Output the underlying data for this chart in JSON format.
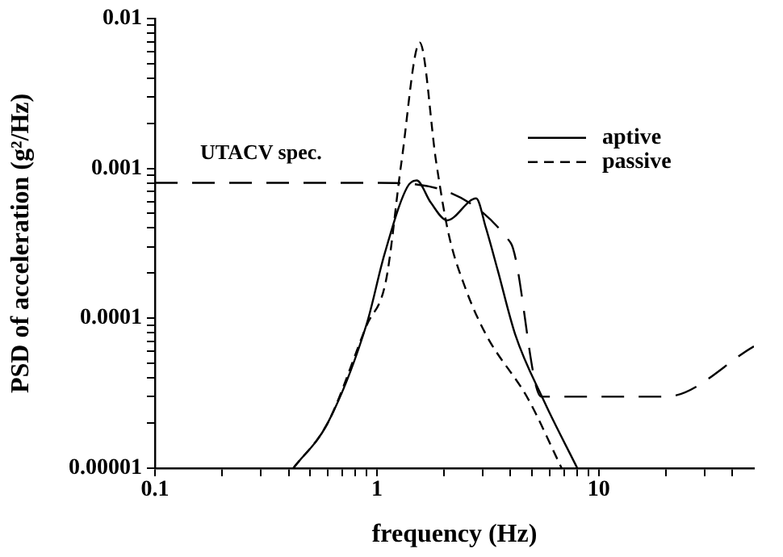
{
  "chart_data": {
    "type": "line",
    "xlabel": "frequency (Hz)",
    "ylabel": "PSD of acceleration (g²/Hz)",
    "log": "xy",
    "grid": false,
    "legend": "top right",
    "marker": "none",
    "xlim": [
      0.1,
      50
    ],
    "ylim": [
      1e-05,
      0.01
    ],
    "xticks": [
      0.1,
      {
        "value": 0.2,
        "label": null
      },
      {
        "value": 0.3,
        "label": null
      },
      {
        "value": 0.4,
        "label": null
      },
      {
        "value": 0.5,
        "label": null
      },
      {
        "value": 0.6,
        "label": null
      },
      {
        "value": 0.7,
        "label": null
      },
      {
        "value": 0.8,
        "label": null
      },
      {
        "value": 0.9,
        "label": null
      },
      1,
      {
        "value": 2,
        "label": null
      },
      {
        "value": 3,
        "label": null
      },
      {
        "value": 4,
        "label": null
      },
      {
        "value": 5,
        "label": null
      },
      {
        "value": 6,
        "label": null
      },
      {
        "value": 7,
        "label": null
      },
      {
        "value": 8,
        "label": null
      },
      {
        "value": 9,
        "label": null
      },
      10,
      {
        "value": 20,
        "label": null
      },
      {
        "value": 30,
        "label": null
      },
      {
        "value": 40,
        "label": null
      }
    ],
    "yticks": [
      {
        "value": 1e-05,
        "label": "0.00001"
      },
      {
        "value": 2e-05,
        "label": null
      },
      {
        "value": 3e-05,
        "label": null
      },
      {
        "value": 4e-05,
        "label": null
      },
      {
        "value": 5e-05,
        "label": null
      },
      {
        "value": 6e-05,
        "label": null
      },
      {
        "value": 7e-05,
        "label": null
      },
      {
        "value": 8e-05,
        "label": null
      },
      {
        "value": 9e-05,
        "label": null
      },
      0.0001,
      {
        "value": 0.0002,
        "label": null
      },
      {
        "value": 0.0003,
        "label": null
      },
      {
        "value": 0.0004,
        "label": null
      },
      {
        "value": 0.0005,
        "label": null
      },
      {
        "value": 0.0006,
        "label": null
      },
      {
        "value": 0.0007,
        "label": null
      },
      {
        "value": 0.0008,
        "label": null
      },
      {
        "value": 0.0009,
        "label": null
      },
      0.001,
      {
        "value": 0.002,
        "label": null
      },
      {
        "value": 0.003,
        "label": null
      },
      {
        "value": 0.004,
        "label": null
      },
      {
        "value": 0.005,
        "label": null
      },
      {
        "value": 0.006,
        "label": null
      },
      {
        "value": 0.007,
        "label": null
      },
      {
        "value": 0.008,
        "label": null
      },
      {
        "value": 0.009,
        "label": null
      },
      0.01
    ],
    "series": [
      {
        "name": "aptive",
        "color": "#000000",
        "line_style": "solid",
        "x": [
          0.42,
          0.6,
          0.9,
          1.08,
          1.37,
          1.51,
          1.75,
          2.07,
          2.8,
          3.1,
          3.5,
          4.2,
          5.6,
          8.0
        ],
        "values": [
          1e-05,
          2e-05,
          9.2e-05,
          0.000265,
          0.00075,
          0.00083,
          0.00059,
          0.00045,
          0.00063,
          0.0004,
          0.00021,
          7.8e-05,
          2.9e-05,
          1e-05
        ]
      },
      {
        "name": "passive",
        "color": "#000000",
        "line_style": "dashed",
        "x": [
          0.42,
          0.6,
          0.9,
          1.1,
          1.29,
          1.56,
          1.85,
          2.1,
          2.5,
          3.1,
          4.8,
          6.8
        ],
        "values": [
          1e-05,
          2e-05,
          9e-05,
          0.00018,
          0.0011,
          0.0069,
          0.0011,
          0.00037,
          0.00016,
          7.8e-05,
          2.9e-05,
          1e-05
        ]
      },
      {
        "color": "#000000",
        "line_style": "dashed",
        "x": [
          0.1,
          1,
          4,
          5.5,
          20,
          50
        ],
        "values": [
          0.0008,
          0.0008,
          0.00032,
          3e-05,
          3e-05,
          6.5e-05
        ]
      }
    ],
    "annotations": [
      "UTACV spec."
    ]
  }
}
